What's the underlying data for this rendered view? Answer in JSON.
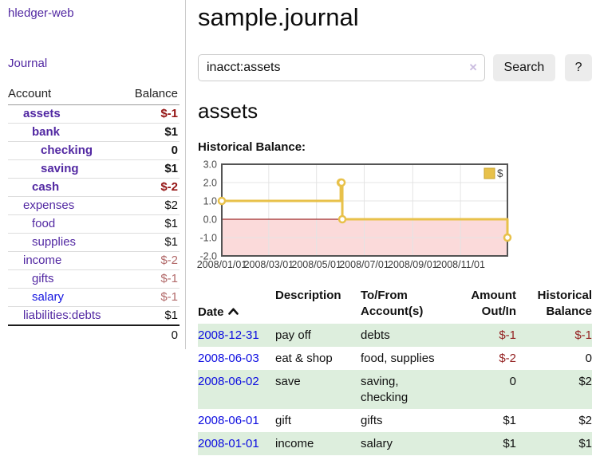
{
  "app": {
    "brand": "hledger-web",
    "nav": {
      "journal": "Journal"
    }
  },
  "sidebar": {
    "header": {
      "account": "Account",
      "balance": "Balance"
    },
    "accounts": [
      {
        "name": "assets",
        "balance": "$-1",
        "indent": 1,
        "bold": true,
        "negative": true,
        "blue": false
      },
      {
        "name": "bank",
        "balance": "$1",
        "indent": 2,
        "bold": true,
        "negative": false,
        "blue": false
      },
      {
        "name": "checking",
        "balance": "0",
        "indent": 3,
        "bold": true,
        "negative": false,
        "blue": false
      },
      {
        "name": "saving",
        "balance": "$1",
        "indent": 3,
        "bold": true,
        "negative": false,
        "blue": false
      },
      {
        "name": "cash",
        "balance": "$-2",
        "indent": 2,
        "bold": true,
        "negative": true,
        "blue": false
      },
      {
        "name": "expenses",
        "balance": "$2",
        "indent": 1,
        "bold": false,
        "negative": false,
        "blue": false
      },
      {
        "name": "food",
        "balance": "$1",
        "indent": 2,
        "bold": false,
        "negative": false,
        "blue": false
      },
      {
        "name": "supplies",
        "balance": "$1",
        "indent": 2,
        "bold": false,
        "negative": false,
        "blue": false
      },
      {
        "name": "income",
        "balance": "$-2",
        "indent": 1,
        "bold": false,
        "negative": true,
        "blue": false
      },
      {
        "name": "gifts",
        "balance": "$-1",
        "indent": 2,
        "bold": false,
        "negative": true,
        "blue": false
      },
      {
        "name": "salary",
        "balance": "$-1",
        "indent": 2,
        "bold": false,
        "negative": true,
        "blue": true
      },
      {
        "name": "liabilities:debts",
        "balance": "$1",
        "indent": 1,
        "bold": false,
        "negative": false,
        "blue": false
      }
    ],
    "total": "0"
  },
  "main": {
    "title": "sample.journal",
    "search": {
      "value": "inacct:assets",
      "clear": "✕",
      "button": "Search",
      "help": "?"
    },
    "heading": "assets"
  },
  "chart_data": {
    "type": "line",
    "step": true,
    "title": "Historical Balance:",
    "legend": "$",
    "legend_position": "top-right",
    "ylim": [
      -2,
      3
    ],
    "xrange_days": 365,
    "grid": true,
    "zero_line_color": "#8b0000",
    "negative_region_fill": "#fbdada",
    "point_style": "hollow-circle",
    "series": [
      {
        "name": "$",
        "color": "#e8c14a",
        "points": [
          {
            "date": "2008-01-01",
            "day": 0,
            "value": 1
          },
          {
            "date": "2008-06-01",
            "day": 152,
            "value": 2
          },
          {
            "date": "2008-06-02",
            "day": 153,
            "value": 2
          },
          {
            "date": "2008-06-03",
            "day": 154,
            "value": 0
          },
          {
            "date": "2008-12-31",
            "day": 365,
            "value": -1
          }
        ]
      }
    ],
    "yticks": [
      {
        "label": "3.0",
        "value": 3
      },
      {
        "label": "2.0",
        "value": 2
      },
      {
        "label": "1.0",
        "value": 1
      },
      {
        "label": "0.0",
        "value": 0
      },
      {
        "label": "-1.0",
        "value": -1
      },
      {
        "label": "-2.0",
        "value": -2
      }
    ],
    "xticks": [
      {
        "label": "2008/01/01",
        "day": 0
      },
      {
        "label": "2008/03/01",
        "day": 60
      },
      {
        "label": "2008/05/01",
        "day": 121
      },
      {
        "label": "2008/07/01",
        "day": 182
      },
      {
        "label": "2008/09/01",
        "day": 244
      },
      {
        "label": "2008/11/01",
        "day": 305
      }
    ]
  },
  "register": {
    "headers": {
      "date": "Date",
      "description": "Description",
      "tofrom": "To/From\nAccount(s)",
      "amount": "Amount\nOut/In",
      "balance": "Historical\nBalance"
    },
    "sort": {
      "column": "date",
      "direction": "ascending"
    },
    "rows": [
      {
        "date": "2008-12-31",
        "description": "pay off",
        "accounts": "debts",
        "amount": "$-1",
        "balance": "$-1",
        "amount_negative": true,
        "balance_negative": true
      },
      {
        "date": "2008-06-03",
        "description": "eat & shop",
        "accounts": "food, supplies",
        "amount": "$-2",
        "balance": "0",
        "amount_negative": true,
        "balance_negative": false
      },
      {
        "date": "2008-06-02",
        "description": "save",
        "accounts": "saving,\nchecking",
        "amount": "0",
        "balance": "$2",
        "amount_negative": false,
        "balance_negative": false
      },
      {
        "date": "2008-06-01",
        "description": "gift",
        "accounts": "gifts",
        "amount": "$1",
        "balance": "$2",
        "amount_negative": false,
        "balance_negative": false
      },
      {
        "date": "2008-01-01",
        "description": "income",
        "accounts": "salary",
        "amount": "$1",
        "balance": "$1",
        "amount_negative": false,
        "balance_negative": false
      }
    ]
  }
}
